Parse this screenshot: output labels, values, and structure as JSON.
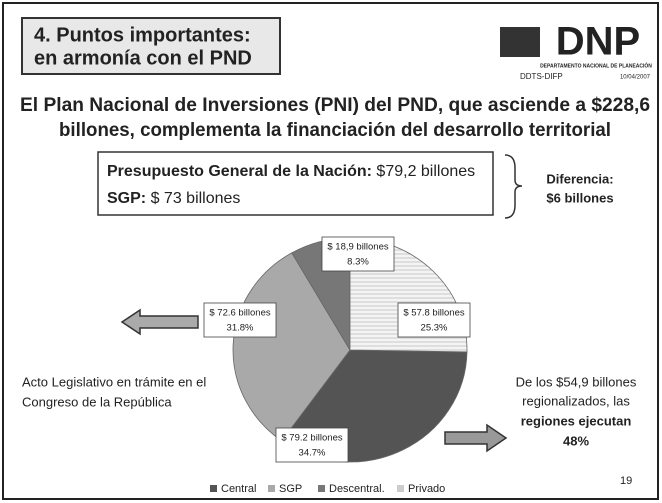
{
  "header": {
    "title_lines": [
      "4. Puntos importantes:",
      "en armonía con el PND"
    ],
    "logo": "DNP",
    "logo_caption": "DEPARTAMENTO NACIONAL DE PLANEACIÓN",
    "unit": "DDTS-DIFP",
    "date": "10/04/2007"
  },
  "headline": [
    "El Plan Nacional de Inversiones (PNI) del PND, que asciende a $228,6",
    "billones, complementa la financiación del desarrollo territorial"
  ],
  "budget_box": {
    "line1_label": "Presupuesto General de la Nación:",
    "line1_value": "$79,2 billones",
    "line2_label": "SGP:",
    "line2_value": "$ 73 billones"
  },
  "difference": [
    "Diferencia:",
    "$6 billones"
  ],
  "left_note": [
    "Acto Legislativo en trámite en el",
    "Congreso de la República"
  ],
  "right_note": [
    "De los $54,9 billones",
    "regionalizados, las",
    "regiones ejecutan",
    "48%"
  ],
  "page_number": "19",
  "chart_data": {
    "type": "pie",
    "categories": [
      "Central",
      "SGP",
      "Descentral.",
      "Privado"
    ],
    "values": [
      34.7,
      31.8,
      8.3,
      25.3
    ],
    "value_labels": [
      "34.7%",
      "31.8%",
      "8.3%",
      "25.3%"
    ],
    "amount_labels": [
      "$ 79.2 billones",
      "$ 72.6 billones",
      "$ 18,9 billones",
      "$ 57.8 billones"
    ],
    "colors": [
      "#545454",
      "#a9a9a9",
      "#777777",
      "#efefef"
    ],
    "legend": "bottom"
  }
}
